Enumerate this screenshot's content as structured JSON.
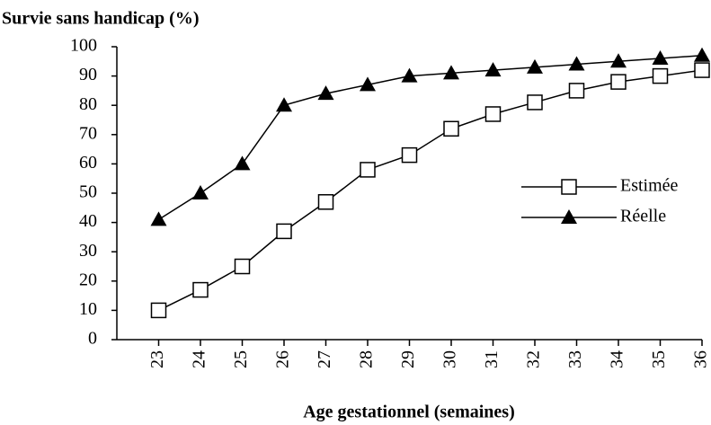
{
  "chart_data": {
    "type": "line",
    "title": "Survie sans handicap (%)",
    "x_label": "Age gestationnel (semaines)",
    "x": [
      23,
      24,
      25,
      26,
      27,
      28,
      29,
      30,
      31,
      32,
      33,
      34,
      35,
      36
    ],
    "xlim": [
      22,
      36
    ],
    "xticks": [
      23,
      24,
      25,
      26,
      27,
      28,
      29,
      30,
      31,
      32,
      33,
      34,
      35,
      36
    ],
    "ylim": [
      0,
      100
    ],
    "yticks": [
      0,
      10,
      20,
      30,
      40,
      50,
      60,
      70,
      80,
      90,
      100
    ],
    "legend": "right",
    "series": [
      {
        "name": "Estimée",
        "color": "#000000",
        "marker": "square",
        "values": [
          10,
          17,
          25,
          37,
          47,
          58,
          63,
          72,
          77,
          81,
          85,
          88,
          90,
          92
        ]
      },
      {
        "name": "Réelle",
        "color": "#000000",
        "marker": "triangle",
        "values": [
          41,
          50,
          60,
          80,
          84,
          87,
          90,
          91,
          92,
          93,
          94,
          95,
          96,
          97
        ]
      }
    ]
  }
}
